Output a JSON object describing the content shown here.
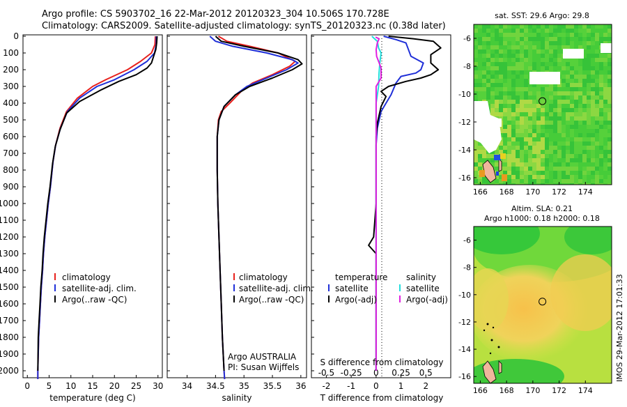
{
  "header": {
    "line1": "Argo profile: CS 5903702_16 22-Mar-2012 20120323_304 10.506S 170.728E",
    "line2": "Climatology: CARS2009. Satellite-adjusted climatology: synTS_20120323.nc (0.38d later)"
  },
  "colors": {
    "clim": "#e8201c",
    "sat": "#1f2fd8",
    "argo": "#000000",
    "sat_s": "#22dddd",
    "argo_s": "#e020e0"
  },
  "depth_ticks": [
    "0",
    "100",
    "200",
    "300",
    "400",
    "500",
    "600",
    "700",
    "800",
    "900",
    "1000",
    "1100",
    "1200",
    "1300",
    "1400",
    "1500",
    "1600",
    "1700",
    "1800",
    "1900",
    "2000"
  ],
  "panels": {
    "temperature": {
      "xlabel": "temperature (deg C)",
      "xticks": [
        "0",
        "5",
        "10",
        "15",
        "20",
        "25",
        "30"
      ],
      "legend": [
        "climatology",
        "satellite-adj. clim.",
        "Argo(..raw -QC)"
      ]
    },
    "salinity": {
      "xlabel": "salinity",
      "xticks": [
        "34",
        "34.5",
        "35",
        "35.5",
        "36"
      ],
      "legend": [
        "climatology",
        "satellite-adj. clim.",
        "Argo(..raw -QC)"
      ],
      "credit1": "Argo AUSTRALIA",
      "credit2": "PI: Susan Wijffels"
    },
    "difference": {
      "top_label": "S difference from climatology",
      "top_ticks": [
        "-0.5",
        "-0.25",
        "0",
        "0.25",
        "0.5"
      ],
      "xlabel": "T difference from climatology",
      "xticks": [
        "-2",
        "-1",
        "0",
        "1",
        "2"
      ],
      "legend_t_title": "temperature",
      "legend_s_title": "salinity",
      "legend_t": [
        "satellite",
        "Argo(-adj)"
      ],
      "legend_s": [
        "satellite",
        "Argo(-adj)"
      ]
    }
  },
  "maps": {
    "sst": {
      "title": "sat. SST: 29.6  Argo: 29.8"
    },
    "sla": {
      "title1": "Altim. SLA: 0.21",
      "title2": "Argo h1000: 0.18  h2000: 0.18"
    },
    "yticks": [
      "-6",
      "-8",
      "-10",
      "-12",
      "-14",
      "-16"
    ],
    "xticks": [
      "166",
      "168",
      "170",
      "172",
      "174"
    ]
  },
  "side_stamp": "IMOS 29-Mar-2012 17:01:33",
  "chart_data": [
    {
      "type": "line",
      "title": "",
      "xlabel": "temperature (deg C)",
      "ylabel": "",
      "xlim": [
        -1,
        31
      ],
      "ylim": [
        2050,
        0
      ],
      "series": [
        {
          "name": "climatology",
          "color": "#e8201c",
          "points": [
            [
              29.4,
              0
            ],
            [
              29.3,
              50
            ],
            [
              28.5,
              100
            ],
            [
              26,
              150
            ],
            [
              23,
              200
            ],
            [
              18,
              260
            ],
            [
              15,
              300
            ],
            [
              11.5,
              370
            ],
            [
              9,
              450
            ],
            [
              7.5,
              550
            ],
            [
              6.5,
              650
            ],
            [
              5.9,
              750
            ],
            [
              5.3,
              900
            ],
            [
              4.8,
              1000
            ],
            [
              4.4,
              1100
            ],
            [
              4,
              1200
            ],
            [
              3.7,
              1300
            ],
            [
              3.5,
              1400
            ],
            [
              3.2,
              1500
            ],
            [
              3,
              1600
            ],
            [
              2.8,
              1700
            ],
            [
              2.6,
              1800
            ],
            [
              2.4,
              2000
            ],
            [
              2.4,
              2050
            ]
          ]
        },
        {
          "name": "satellite-adj. clim.",
          "color": "#1f2fd8",
          "points": [
            [
              29.6,
              0
            ],
            [
              29.6,
              50
            ],
            [
              29.2,
              100
            ],
            [
              27.5,
              150
            ],
            [
              24.5,
              200
            ],
            [
              20,
              260
            ],
            [
              16,
              300
            ],
            [
              12,
              370
            ],
            [
              9.2,
              450
            ],
            [
              7.6,
              550
            ],
            [
              6.5,
              650
            ],
            [
              5.9,
              750
            ],
            [
              5.3,
              900
            ],
            [
              4.8,
              1000
            ],
            [
              4.4,
              1100
            ],
            [
              4,
              1200
            ],
            [
              3.7,
              1300
            ],
            [
              3.5,
              1400
            ],
            [
              3.2,
              1500
            ],
            [
              3,
              1600
            ],
            [
              2.8,
              1700
            ],
            [
              2.6,
              1800
            ],
            [
              2.4,
              2000
            ],
            [
              2.4,
              2050
            ]
          ]
        },
        {
          "name": "Argo(..raw -QC)",
          "color": "#000000",
          "points": [
            [
              29.8,
              0
            ],
            [
              29.7,
              40
            ],
            [
              29.5,
              80
            ],
            [
              29,
              120
            ],
            [
              28.5,
              160
            ],
            [
              27.5,
              190
            ],
            [
              25,
              230
            ],
            [
              21,
              270
            ],
            [
              17,
              320
            ],
            [
              12,
              390
            ],
            [
              9,
              460
            ],
            [
              7.5,
              560
            ],
            [
              6.4,
              660
            ],
            [
              5.8,
              760
            ],
            [
              5.2,
              900
            ],
            [
              4.7,
              1000
            ],
            [
              4.3,
              1100
            ],
            [
              3.9,
              1200
            ],
            [
              3.6,
              1300
            ],
            [
              3.4,
              1400
            ],
            [
              3.1,
              1500
            ],
            [
              2.9,
              1600
            ],
            [
              2.7,
              1700
            ],
            [
              2.5,
              1800
            ],
            [
              2.4,
              2000
            ]
          ]
        }
      ]
    },
    {
      "type": "line",
      "title": "",
      "xlabel": "salinity",
      "ylabel": "",
      "xlim": [
        33.65,
        36.1
      ],
      "ylim": [
        2050,
        0
      ],
      "series": [
        {
          "name": "climatology",
          "color": "#e8201c",
          "points": [
            [
              34.55,
              0
            ],
            [
              34.7,
              30
            ],
            [
              35.1,
              60
            ],
            [
              35.6,
              100
            ],
            [
              35.9,
              150
            ],
            [
              35.8,
              180
            ],
            [
              35.5,
              230
            ],
            [
              35.15,
              280
            ],
            [
              34.95,
              330
            ],
            [
              34.75,
              400
            ],
            [
              34.6,
              450
            ],
            [
              34.55,
              500
            ],
            [
              34.53,
              600
            ],
            [
              34.53,
              800
            ],
            [
              34.54,
              1000
            ],
            [
              34.56,
              1200
            ],
            [
              34.58,
              1400
            ],
            [
              34.6,
              1600
            ],
            [
              34.62,
              1800
            ],
            [
              34.65,
              2000
            ],
            [
              34.66,
              2050
            ]
          ]
        },
        {
          "name": "satellite-adj. clim.",
          "color": "#1f2fd8",
          "points": [
            [
              34.4,
              0
            ],
            [
              34.5,
              30
            ],
            [
              34.8,
              60
            ],
            [
              35.4,
              100
            ],
            [
              35.85,
              140
            ],
            [
              35.95,
              160
            ],
            [
              35.75,
              200
            ],
            [
              35.4,
              250
            ],
            [
              35.05,
              300
            ],
            [
              34.85,
              350
            ],
            [
              34.65,
              420
            ],
            [
              34.56,
              500
            ],
            [
              34.53,
              600
            ],
            [
              34.53,
              800
            ],
            [
              34.54,
              1000
            ],
            [
              34.56,
              1200
            ],
            [
              34.58,
              1400
            ],
            [
              34.6,
              1600
            ],
            [
              34.62,
              1800
            ],
            [
              34.65,
              2000
            ],
            [
              34.66,
              2050
            ]
          ]
        },
        {
          "name": "Argo(..raw -QC)",
          "color": "#000000",
          "points": [
            [
              34.5,
              0
            ],
            [
              34.6,
              30
            ],
            [
              35,
              60
            ],
            [
              35.6,
              100
            ],
            [
              35.95,
              140
            ],
            [
              36.02,
              165
            ],
            [
              35.85,
              200
            ],
            [
              35.5,
              250
            ],
            [
              35.1,
              300
            ],
            [
              34.85,
              350
            ],
            [
              34.65,
              420
            ],
            [
              34.56,
              500
            ],
            [
              34.53,
              600
            ],
            [
              34.53,
              800
            ],
            [
              34.54,
              1000
            ],
            [
              34.56,
              1200
            ],
            [
              34.58,
              1400
            ],
            [
              34.6,
              1600
            ],
            [
              34.62,
              1800
            ],
            [
              34.65,
              2000
            ]
          ]
        }
      ]
    },
    {
      "type": "line",
      "title": "",
      "xlabel": "T difference from climatology",
      "ylabel": "",
      "xlim": [
        -2.6,
        3
      ],
      "ylim": [
        2050,
        0
      ],
      "series": [
        {
          "name": "temperature satellite",
          "color": "#1f2fd8",
          "points": [
            [
              0.3,
              0
            ],
            [
              0.8,
              20
            ],
            [
              1.2,
              40
            ],
            [
              1.3,
              80
            ],
            [
              1.4,
              120
            ],
            [
              1.9,
              160
            ],
            [
              1.8,
              200
            ],
            [
              1.6,
              220
            ],
            [
              1,
              240
            ],
            [
              0.8,
              280
            ],
            [
              0.6,
              350
            ],
            [
              0.4,
              400
            ],
            [
              0.2,
              450
            ],
            [
              0.05,
              550
            ],
            [
              0,
              650
            ],
            [
              0,
              2000
            ]
          ]
        },
        {
          "name": "temperature Argo(-adj)",
          "color": "#000000",
          "points": [
            [
              0.5,
              0
            ],
            [
              1.5,
              15
            ],
            [
              2.3,
              30
            ],
            [
              2.6,
              70
            ],
            [
              2.2,
              110
            ],
            [
              2.2,
              160
            ],
            [
              2.5,
              200
            ],
            [
              2.2,
              230
            ],
            [
              1.8,
              250
            ],
            [
              1.2,
              270
            ],
            [
              0.5,
              300
            ],
            [
              0.2,
              330
            ],
            [
              0.4,
              360
            ],
            [
              0.2,
              420
            ],
            [
              0.05,
              520
            ],
            [
              0,
              600
            ],
            [
              0,
              1000
            ],
            [
              -0.1,
              1200
            ],
            [
              -0.3,
              1250
            ],
            [
              0,
              1300
            ],
            [
              0,
              2000
            ]
          ]
        },
        {
          "name": "salinity satellite",
          "color": "#22dddd",
          "points": [
            [
              -0.17,
              0
            ],
            [
              -0.1,
              10
            ],
            [
              0.05,
              30
            ],
            [
              0.1,
              70
            ],
            [
              0.2,
              100
            ],
            [
              0.15,
              160
            ],
            [
              0.12,
              220
            ],
            [
              0.1,
              300
            ],
            [
              0,
              400
            ],
            [
              0,
              2000
            ]
          ]
        },
        {
          "name": "salinity Argo(-adj)",
          "color": "#e020e0",
          "points": [
            [
              -0.02,
              5
            ],
            [
              0.12,
              15
            ],
            [
              0.05,
              40
            ],
            [
              0,
              80
            ],
            [
              0.02,
              120
            ],
            [
              0.1,
              150
            ],
            [
              0.2,
              190
            ],
            [
              0.2,
              250
            ],
            [
              0,
              300
            ],
            [
              0,
              420
            ],
            [
              0,
              2000
            ]
          ]
        }
      ]
    },
    {
      "type": "heatmap",
      "title": "sat. SST: 29.6  Argo: 29.8",
      "xlim": [
        165.5,
        176
      ],
      "ylim": [
        -16.5,
        -5
      ],
      "values": [],
      "argo_position": {
        "lon": 170.728,
        "lat": -10.506
      }
    },
    {
      "type": "heatmap",
      "title": "Altim. SLA: 0.21",
      "xlim": [
        165.5,
        176
      ],
      "ylim": [
        -16.5,
        -5
      ],
      "values": [],
      "argo_position": {
        "lon": 170.728,
        "lat": -10.506
      }
    }
  ]
}
